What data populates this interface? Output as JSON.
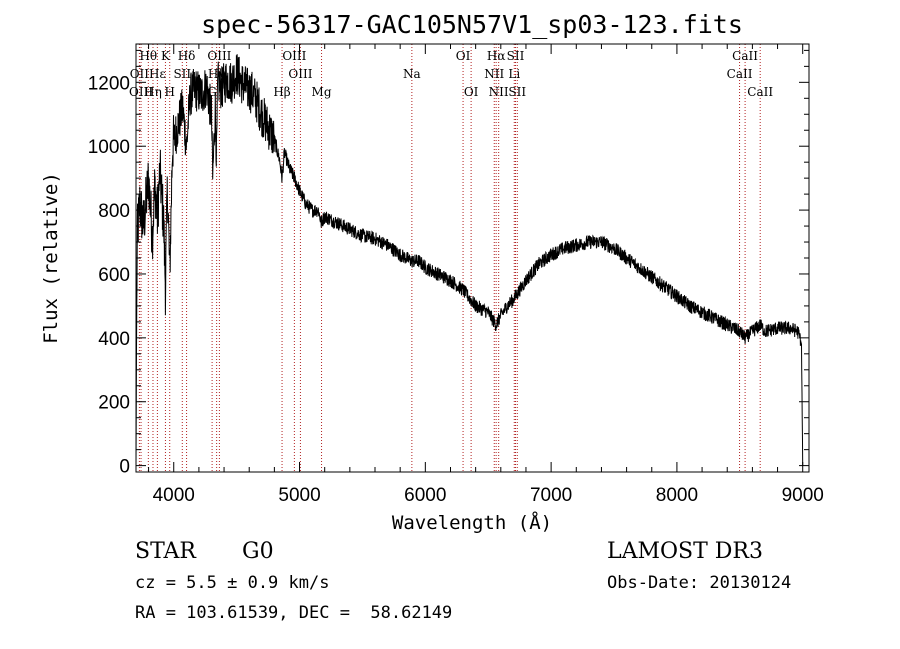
{
  "chart_data": {
    "type": "line",
    "title": "spec-56317-GAC105N57V1_sp03-123.fits",
    "xlabel": "Wavelength (Å)",
    "ylabel": "Flux (relative)",
    "xlim": [
      3700,
      9050
    ],
    "ylim": [
      -20,
      1320
    ],
    "xticks": [
      4000,
      5000,
      6000,
      7000,
      8000,
      9000
    ],
    "yticks": [
      0,
      200,
      400,
      600,
      800,
      1000,
      1200
    ],
    "spectrum_anchors": {
      "x": [
        3700,
        3703,
        3710,
        3730,
        3760,
        3800,
        3830,
        3850,
        3870,
        3890,
        3920,
        3934,
        3950,
        3968,
        3990,
        4030,
        4070,
        4102,
        4130,
        4170,
        4220,
        4260,
        4300,
        4310,
        4330,
        4340,
        4350,
        4380,
        4420,
        4460,
        4500,
        4540,
        4580,
        4620,
        4660,
        4700,
        4750,
        4800,
        4840,
        4861,
        4880,
        4920,
        4960,
        5000,
        5050,
        5100,
        5150,
        5172,
        5200,
        5300,
        5400,
        5500,
        5600,
        5700,
        5800,
        5893,
        5950,
        6000,
        6100,
        6200,
        6300,
        6400,
        6500,
        6563,
        6600,
        6650,
        6700,
        6800,
        6900,
        7000,
        7100,
        7200,
        7300,
        7400,
        7500,
        7600,
        7700,
        7800,
        7900,
        8000,
        8100,
        8200,
        8300,
        8400,
        8498,
        8542,
        8600,
        8662,
        8700,
        8800,
        8900,
        8960,
        8980,
        8990,
        9000
      ],
      "y": [
        0,
        300,
        720,
        820,
        750,
        900,
        720,
        880,
        780,
        920,
        760,
        560,
        880,
        600,
        1000,
        1060,
        1120,
        1000,
        1160,
        1180,
        1160,
        1190,
        1100,
        900,
        1120,
        960,
        1200,
        1180,
        1210,
        1200,
        1230,
        1200,
        1180,
        1170,
        1140,
        1100,
        1060,
        1020,
        960,
        900,
        980,
        930,
        900,
        860,
        820,
        800,
        800,
        760,
        780,
        760,
        740,
        720,
        710,
        690,
        660,
        640,
        640,
        620,
        600,
        580,
        550,
        500,
        480,
        440,
        470,
        500,
        520,
        580,
        630,
        660,
        680,
        690,
        700,
        700,
        680,
        650,
        620,
        590,
        560,
        530,
        500,
        480,
        460,
        440,
        420,
        400,
        420,
        440,
        420,
        430,
        430,
        420,
        400,
        380,
        0
      ]
    },
    "noise_amplitude_blue": 70,
    "noise_amplitude_red": 22,
    "spectral_lines": [
      {
        "label": "Hθ",
        "x": 3798,
        "row": 0
      },
      {
        "label": "OII",
        "x": 3727,
        "row": 1
      },
      {
        "label": "OIII",
        "x": 3740,
        "row": 2
      },
      {
        "label": "Hε",
        "x": 3870,
        "row": 1
      },
      {
        "label": "Hη",
        "x": 3835,
        "row": 2
      },
      {
        "label": "K",
        "x": 3934,
        "row": 0
      },
      {
        "label": "SII",
        "x": 4068,
        "row": 1
      },
      {
        "label": "H",
        "x": 3968,
        "row": 2
      },
      {
        "label": "Hδ",
        "x": 4102,
        "row": 0
      },
      {
        "label": "OIII",
        "x": 4363,
        "row": 0
      },
      {
        "label": "Hγ",
        "x": 4341,
        "row": 1
      },
      {
        "label": "G",
        "x": 4305,
        "row": 2
      },
      {
        "label": "OIII",
        "x": 4959,
        "row": 0
      },
      {
        "label": "OIII",
        "x": 5007,
        "row": 1
      },
      {
        "label": "Hβ",
        "x": 4861,
        "row": 2
      },
      {
        "label": "Mg",
        "x": 5175,
        "row": 2
      },
      {
        "label": "Na",
        "x": 5893,
        "row": 1
      },
      {
        "label": "OI",
        "x": 6300,
        "row": 0
      },
      {
        "label": "OI",
        "x": 6364,
        "row": 2
      },
      {
        "label": "Hα",
        "x": 6563,
        "row": 0
      },
      {
        "label": "SII",
        "x": 6717,
        "row": 0
      },
      {
        "label": "NII",
        "x": 6548,
        "row": 1
      },
      {
        "label": "Li",
        "x": 6707,
        "row": 1
      },
      {
        "label": "NII",
        "x": 6583,
        "row": 2
      },
      {
        "label": "SII",
        "x": 6731,
        "row": 2
      },
      {
        "label": "CaII",
        "x": 8542,
        "row": 0
      },
      {
        "label": "CaII",
        "x": 8498,
        "row": 1
      },
      {
        "label": "CaII",
        "x": 8662,
        "row": 2
      }
    ]
  },
  "info": {
    "class": "STAR",
    "subclass": "G0",
    "survey": "LAMOST DR3",
    "cz": "cz = 5.5 ± 0.9 km/s",
    "obs_date": "Obs-Date: 20130124",
    "radec": "RA = 103.61539, DEC =  58.62149"
  },
  "colors": {
    "spectrum": "#000000",
    "line_markers": "#b22222",
    "axes": "#000000"
  }
}
